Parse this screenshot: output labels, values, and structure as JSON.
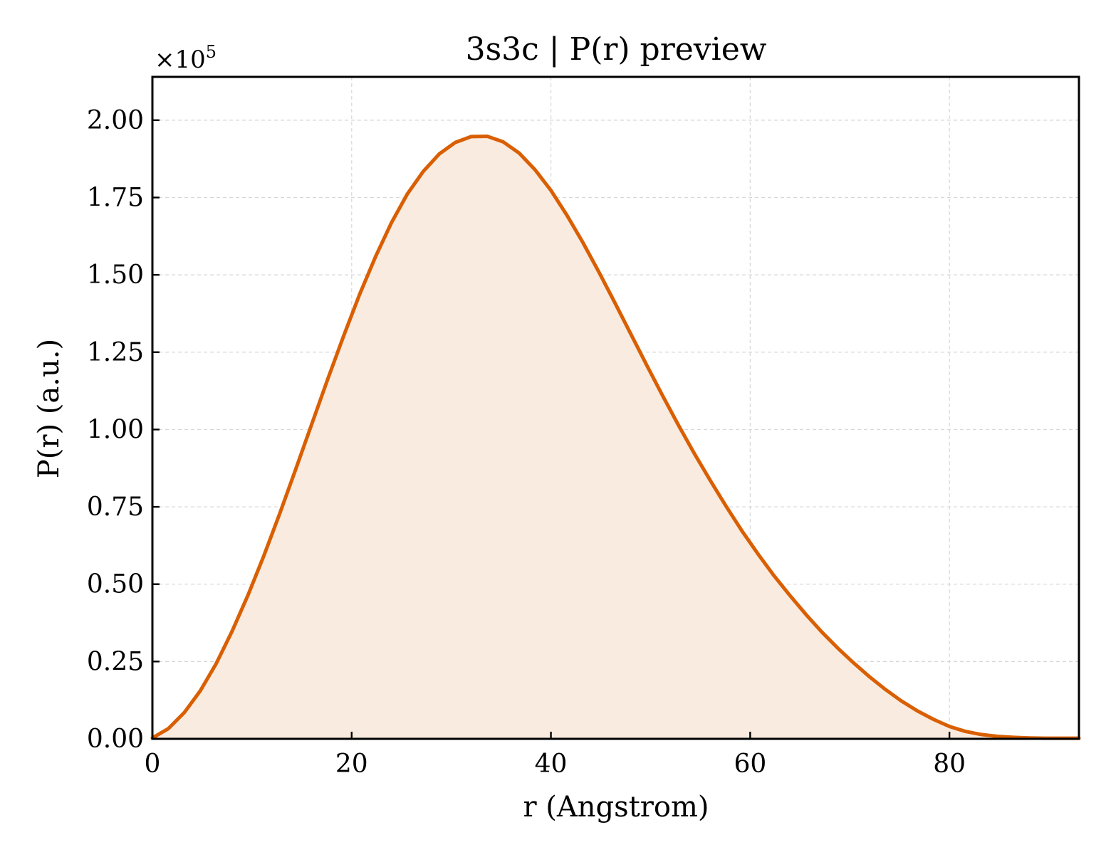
{
  "chart_data": {
    "type": "area",
    "title": "3s3c | P(r) preview",
    "xlabel": "r (Angstrom)",
    "ylabel": "P(r) (a.u.)",
    "y_multiplier_label": "×10",
    "y_multiplier_exponent": "5",
    "y_scale_factor": 100000,
    "xlim": [
      0,
      93
    ],
    "ylim": [
      0,
      2.14
    ],
    "x_ticks": [
      0,
      20,
      40,
      60,
      80
    ],
    "x_tick_labels": [
      "0",
      "20",
      "40",
      "60",
      "80"
    ],
    "y_ticks": [
      0,
      0.25,
      0.5,
      0.75,
      1.0,
      1.25,
      1.5,
      1.75,
      2.0
    ],
    "y_tick_labels": [
      "0.00",
      "0.25",
      "0.50",
      "0.75",
      "1.00",
      "1.25",
      "1.50",
      "1.75",
      "2.00"
    ],
    "grid": true,
    "legend": "none",
    "line_color": "#d95f02",
    "fill_color": "#f9ebe0",
    "series": [
      {
        "x": [
          0,
          1.6,
          3.2,
          4.8,
          6.4,
          8.0,
          9.6,
          11.2,
          12.8,
          14.4,
          16.0,
          17.6,
          19.2,
          20.8,
          22.4,
          24.0,
          25.6,
          27.2,
          28.8,
          30.4,
          32.0,
          33.6,
          35.2,
          36.8,
          38.4,
          40.0,
          41.6,
          43.2,
          44.8,
          46.4,
          48.0,
          49.6,
          51.2,
          52.8,
          54.4,
          56.0,
          57.6,
          59.2,
          60.8,
          62.4,
          64.0,
          65.6,
          67.2,
          68.8,
          70.4,
          72.0,
          73.6,
          75.2,
          76.8,
          78.4,
          80.0,
          81.6,
          83.2,
          84.8,
          86.4,
          88.0,
          89.6,
          91.2,
          93.0
        ],
        "y": [
          0.003,
          0.033,
          0.085,
          0.155,
          0.243,
          0.348,
          0.465,
          0.593,
          0.73,
          0.873,
          1.018,
          1.163,
          1.303,
          1.437,
          1.559,
          1.669,
          1.762,
          1.835,
          1.891,
          1.928,
          1.947,
          1.948,
          1.93,
          1.894,
          1.84,
          1.773,
          1.693,
          1.605,
          1.51,
          1.411,
          1.31,
          1.209,
          1.11,
          1.014,
          0.922,
          0.835,
          0.751,
          0.671,
          0.597,
          0.527,
          0.463,
          0.402,
          0.345,
          0.293,
          0.245,
          0.2,
          0.159,
          0.122,
          0.09,
          0.063,
          0.04,
          0.024,
          0.014,
          0.008,
          0.005,
          0.003,
          0.002,
          0.002,
          0.002
        ]
      }
    ]
  }
}
